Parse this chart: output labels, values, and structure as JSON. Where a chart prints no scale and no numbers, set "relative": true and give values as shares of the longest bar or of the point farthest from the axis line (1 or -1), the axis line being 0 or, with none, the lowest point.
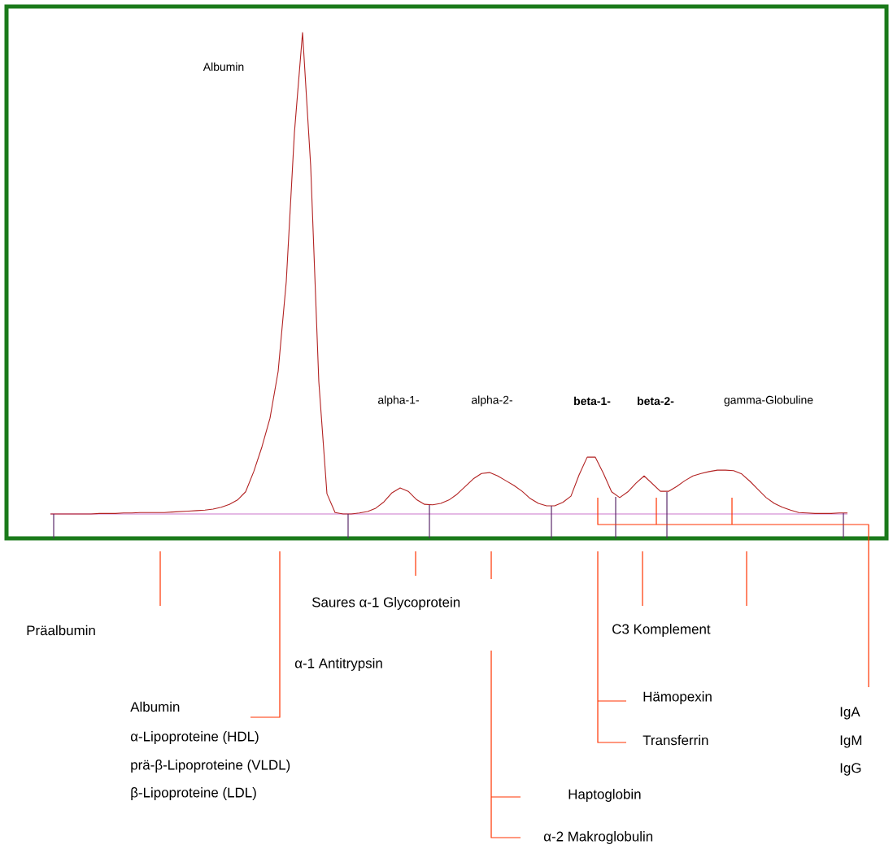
{
  "chart_data": {
    "type": "line",
    "relative": true,
    "categories": [
      null,
      null,
      null,
      null,
      null,
      null,
      null,
      null,
      null,
      null,
      null,
      null,
      null,
      null,
      null,
      null,
      null,
      null,
      null,
      null,
      null,
      null,
      null,
      null,
      null,
      null,
      null,
      null,
      null,
      null,
      null,
      null,
      null,
      null,
      null,
      null,
      null,
      null,
      null,
      null,
      null,
      null,
      null,
      null,
      null,
      null,
      null,
      null,
      null,
      null,
      null,
      null,
      null,
      null,
      null,
      null,
      null,
      null,
      null,
      null,
      null,
      null,
      null,
      null,
      null,
      null,
      null,
      null,
      null,
      null,
      null,
      null,
      null,
      null,
      null,
      null,
      null,
      null,
      null,
      null,
      null,
      null,
      null,
      null,
      null,
      null,
      null,
      null,
      null,
      null,
      null,
      null,
      null,
      null,
      null,
      null,
      null,
      null,
      null
    ],
    "series": [
      {
        "color": "#b22222",
        "values": [
          0,
          0,
          0,
          0,
          0,
          0,
          0.001,
          0.001,
          0.001,
          0.002,
          0.002,
          0.003,
          0.003,
          0.003,
          0.003,
          0.004,
          0.005,
          0.006,
          0.007,
          0.008,
          0.01,
          0.014,
          0.02,
          0.029,
          0.046,
          0.088,
          0.139,
          0.199,
          0.296,
          0.483,
          0.792,
          1,
          0.723,
          0.275,
          0.042,
          0.003,
          0,
          0,
          0.002,
          0.005,
          0.012,
          0.025,
          0.044,
          0.054,
          0.047,
          0.03,
          0.02,
          0.019,
          0.022,
          0.029,
          0.041,
          0.057,
          0.073,
          0.084,
          0.086,
          0.079,
          0.069,
          0.059,
          0.047,
          0.032,
          0.022,
          0.017,
          0.017,
          0.024,
          0.037,
          0.081,
          0.118,
          0.118,
          0.084,
          0.046,
          0.034,
          0.046,
          0.064,
          0.079,
          0.063,
          0.047,
          0.047,
          0.057,
          0.069,
          0.079,
          0.084,
          0.088,
          0.091,
          0.091,
          0.09,
          0.083,
          0.068,
          0.051,
          0.034,
          0.022,
          0.014,
          0.008,
          0.003,
          0.002,
          0.001,
          0.001,
          0.001,
          0.002,
          0.002
        ]
      }
    ],
    "annotations": [
      "Albumin",
      "alpha-1-",
      "alpha-2-",
      "beta-1-",
      "beta-2-",
      "gamma-Globuline",
      "Präalbumin",
      "Saures α-1 Glycoprotein",
      "α-1 Antitrypsin",
      "Albumin",
      "α-Lipoproteine (HDL)",
      "prä-β-Lipoproteine (VLDL)",
      "β-Lipoproteine (LDL)",
      "C3 Komplement",
      "Hämopexin",
      "Transferrin",
      "Haptoglobin",
      "α-2 Makroglobulin",
      "IgA",
      "IgM",
      "IgG"
    ]
  }
}
